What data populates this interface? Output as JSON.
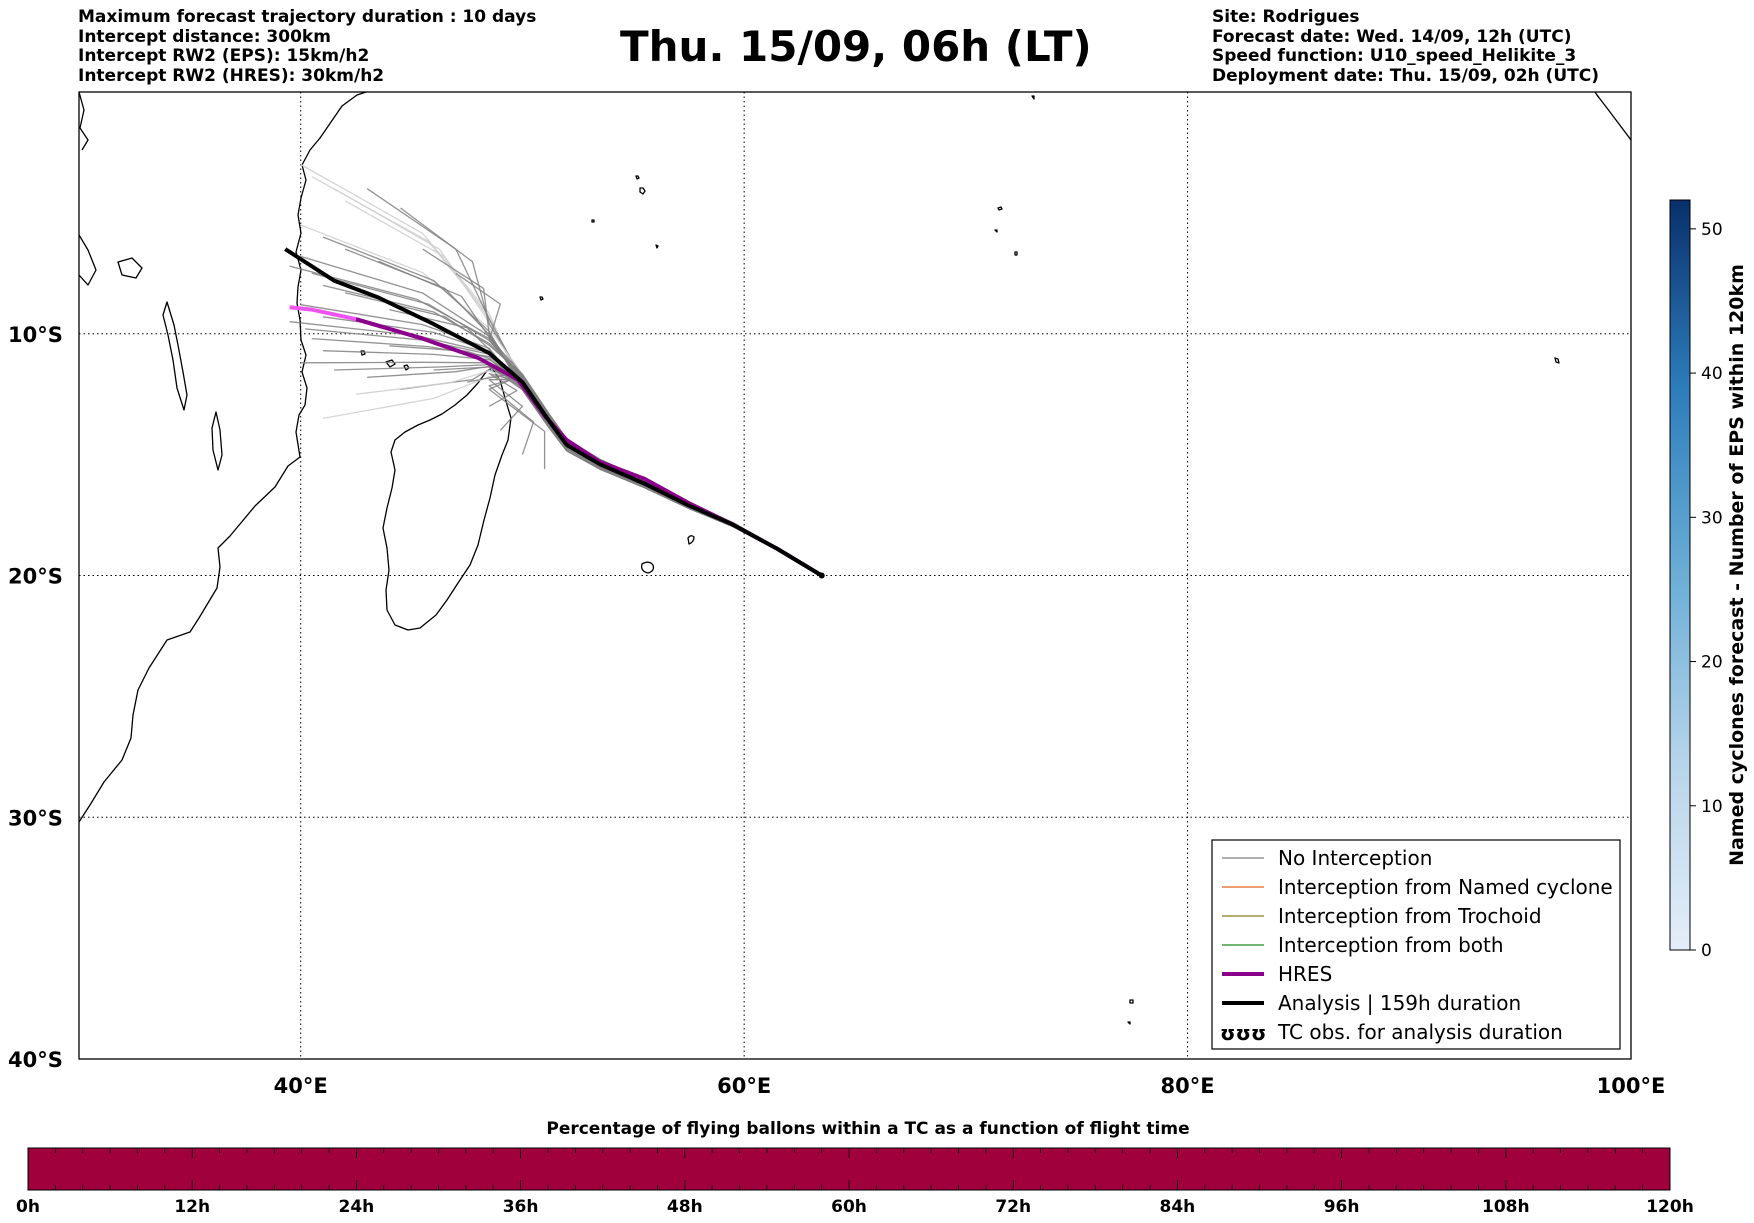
{
  "header": {
    "left": [
      "Maximum forecast trajectory duration : 10 days",
      "Intercept distance: 300km",
      "Intercept RW2 (EPS):  15km/h2",
      "Intercept RW2 (HRES): 30km/h2"
    ],
    "title": "Thu. 15/09, 06h (LT)",
    "right": [
      "Site: Rodrigues",
      "Forecast date: Wed. 14/09, 12h (UTC)",
      "Speed function: U10_speed_Helikite_3",
      "Deployment date: Thu. 15/09, 02h (UTC)"
    ]
  },
  "map": {
    "lon_range": [
      30,
      100
    ],
    "lat_range": [
      -40,
      0
    ],
    "lon_ticks": [
      {
        "v": 40,
        "label": "40°E"
      },
      {
        "v": 60,
        "label": "60°E"
      },
      {
        "v": 80,
        "label": "80°E"
      },
      {
        "v": 100,
        "label": "100°E"
      }
    ],
    "lat_ticks": [
      {
        "v": -10,
        "label": "10°S"
      },
      {
        "v": -20,
        "label": "20°S"
      },
      {
        "v": -30,
        "label": "30°S"
      },
      {
        "v": -40,
        "label": "40°S"
      }
    ],
    "gridlines": "dotted",
    "coastline_color": "#000000",
    "colors": {
      "no_interception": "#808080",
      "light_track": "#d0d0d0",
      "hres": "#8b008b",
      "hres_light": "#ee55ee",
      "analysis": "#000000"
    },
    "legend": {
      "position": "lower-right",
      "items": [
        {
          "label": "No Interception",
          "color": "#808080",
          "kind": "line-thin"
        },
        {
          "label": "Interception from Named cyclone",
          "color": "#e8601c",
          "kind": "line-thin"
        },
        {
          "label": "Interception from Trochoid",
          "color": "#8b7d1a",
          "kind": "line-thin"
        },
        {
          "label": "Interception from both",
          "color": "#1a8b1a",
          "kind": "line-thin"
        },
        {
          "label": "HRES",
          "color": "#8b008b",
          "kind": "line-thick"
        },
        {
          "label": "Analysis | 159h duration",
          "color": "#000000",
          "kind": "line-thick"
        },
        {
          "label": "TC obs. for analysis duration",
          "color": "#000000",
          "kind": "symbol",
          "symbol": "ʊʊʊ"
        }
      ]
    },
    "tracks": {
      "origin": [
        63.5,
        -20.0
      ],
      "trunk": [
        [
          63.5,
          -20.0
        ],
        [
          61.5,
          -18.9
        ],
        [
          59.5,
          -17.9
        ],
        [
          57.5,
          -17.1
        ],
        [
          55.5,
          -16.2
        ],
        [
          53.5,
          -15.4
        ],
        [
          52.0,
          -14.6
        ],
        [
          51.2,
          -13.6
        ],
        [
          50.0,
          -12.0
        ]
      ],
      "analysis": [
        [
          63.5,
          -20.0
        ],
        [
          61.5,
          -18.9
        ],
        [
          59.5,
          -17.9
        ],
        [
          57.5,
          -17.1
        ],
        [
          55.5,
          -16.2
        ],
        [
          53.5,
          -15.4
        ],
        [
          52.0,
          -14.6
        ],
        [
          51.2,
          -13.6
        ],
        [
          50.0,
          -12.0
        ],
        [
          48.5,
          -10.8
        ],
        [
          46.0,
          -9.6
        ],
        [
          43.5,
          -8.5
        ],
        [
          41.5,
          -7.8
        ],
        [
          39.3,
          -6.5
        ]
      ],
      "hres": [
        [
          63.5,
          -20.0
        ],
        [
          61.5,
          -18.9
        ],
        [
          59.5,
          -17.9
        ],
        [
          57.5,
          -17.0
        ],
        [
          55.5,
          -16.0
        ],
        [
          53.5,
          -15.3
        ],
        [
          52.0,
          -14.4
        ],
        [
          51.0,
          -13.4
        ],
        [
          49.8,
          -11.9
        ],
        [
          48.0,
          -11.0
        ],
        [
          45.5,
          -10.2
        ],
        [
          42.5,
          -9.4
        ],
        [
          40.5,
          -9.0
        ],
        [
          39.5,
          -8.9
        ]
      ],
      "eps_ends": [
        [
          40.0,
          -3.0,
          0
        ],
        [
          40.5,
          -3.5,
          0
        ],
        [
          41.5,
          -4.0,
          0
        ],
        [
          42.0,
          -4.5,
          0
        ],
        [
          43.0,
          -4.0,
          1
        ],
        [
          44.5,
          -4.8,
          1
        ],
        [
          40.0,
          -5.5,
          0
        ],
        [
          41.0,
          -6.0,
          1
        ],
        [
          42.0,
          -6.5,
          1
        ],
        [
          40.0,
          -6.8,
          1
        ],
        [
          39.5,
          -7.2,
          1
        ],
        [
          40.5,
          -7.5,
          1
        ],
        [
          41.0,
          -8.0,
          1
        ],
        [
          42.0,
          -8.3,
          1
        ],
        [
          40.0,
          -8.8,
          1
        ],
        [
          41.0,
          -9.3,
          1
        ],
        [
          40.2,
          -9.8,
          1
        ],
        [
          40.5,
          -10.2,
          1
        ],
        [
          41.0,
          -10.7,
          1
        ],
        [
          40.0,
          -11.2,
          1
        ],
        [
          41.5,
          -11.5,
          1
        ],
        [
          43.0,
          -11.8,
          1
        ],
        [
          44.5,
          -12.3,
          1
        ],
        [
          42.5,
          -12.5,
          0
        ],
        [
          41.0,
          -13.5,
          0
        ],
        [
          45.5,
          -6.5,
          1
        ],
        [
          47.0,
          -7.5,
          1
        ],
        [
          43.5,
          -7.0,
          1
        ],
        [
          44.0,
          -9.0,
          1
        ],
        [
          46.0,
          -11.5,
          1
        ],
        [
          47.5,
          -12.0,
          1
        ],
        [
          48.5,
          -13.0,
          1
        ],
        [
          49.0,
          -14.0,
          1
        ],
        [
          50.0,
          -15.0,
          1
        ],
        [
          51.0,
          -15.6,
          1
        ],
        [
          39.5,
          -9.5,
          1
        ],
        [
          44.0,
          -10.5,
          1
        ]
      ]
    }
  },
  "colorbar_right": {
    "label": "Named cyclones forecast - Number of EPS within 120km",
    "ticks": [
      0,
      10,
      20,
      30,
      40,
      50
    ],
    "range": [
      0,
      52
    ],
    "color_low": "#e4eef9",
    "color_high": "#08306b"
  },
  "colorbar_bottom": {
    "title": "Percentage of flying ballons within a TC as a function of flight time",
    "ticks": [
      "0h",
      "12h",
      "24h",
      "36h",
      "48h",
      "60h",
      "72h",
      "84h",
      "96h",
      "108h",
      "120h"
    ],
    "fill_color": "#a0003c"
  }
}
